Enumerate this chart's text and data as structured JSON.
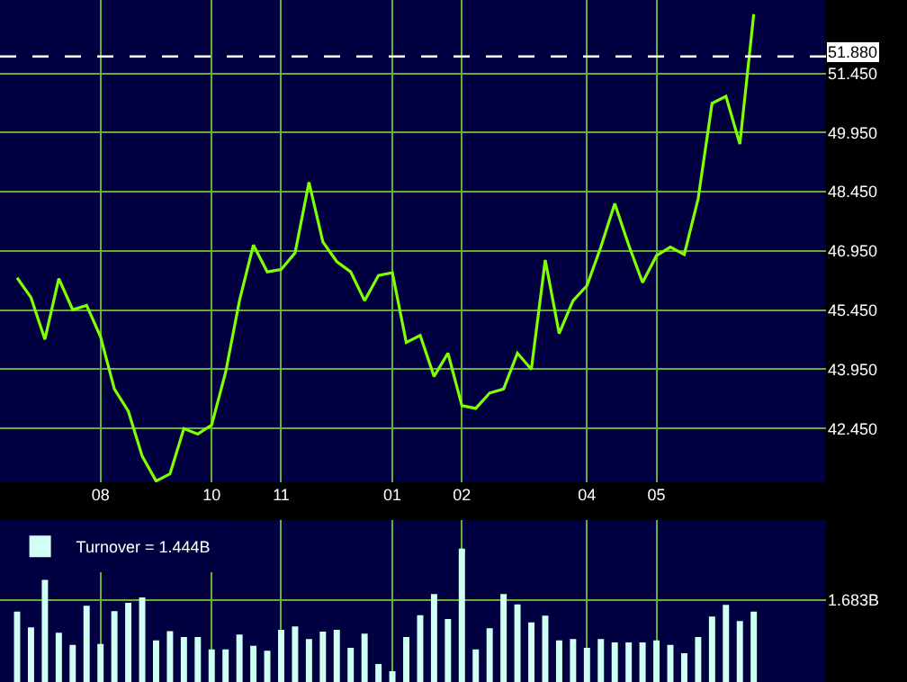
{
  "chart_data": [
    {
      "type": "line",
      "categories": [
        null,
        null,
        null,
        null,
        null,
        null,
        "08",
        null,
        null,
        null,
        null,
        null,
        null,
        null,
        "10",
        null,
        null,
        null,
        null,
        "11",
        null,
        null,
        null,
        null,
        null,
        null,
        null,
        "01",
        null,
        null,
        null,
        null,
        "02",
        null,
        null,
        null,
        null,
        null,
        null,
        null,
        null,
        "04",
        null,
        null,
        null,
        null,
        "05",
        null,
        null,
        null,
        null,
        null,
        null,
        null
      ],
      "series": [
        {
          "color": "#80ff00",
          "values": [
            46.27,
            45.77,
            44.71,
            46.25,
            45.46,
            45.57,
            44.78,
            43.45,
            42.89,
            41.75,
            41.12,
            41.3,
            42.45,
            42.31,
            42.54,
            43.87,
            45.69,
            47.1,
            46.42,
            46.48,
            46.9,
            48.69,
            47.18,
            46.68,
            46.42,
            45.69,
            46.33,
            46.4,
            44.63,
            44.81,
            43.77,
            44.36,
            43.03,
            42.96,
            43.35,
            43.45,
            44.36,
            43.95,
            46.72,
            44.86,
            45.69,
            46.07,
            47.05,
            48.15,
            47.1,
            46.15,
            46.83,
            47.05,
            46.86,
            48.27,
            50.69,
            50.87,
            49.66,
            52.95
          ]
        }
      ],
      "ylim": [
        41.09,
        53.31
      ],
      "yticks": [
        {
          "value": 42.45,
          "label": "42.450"
        },
        {
          "value": 43.95,
          "label": "43.950"
        },
        {
          "value": 45.45,
          "label": "45.450"
        },
        {
          "value": 46.95,
          "label": "46.950"
        },
        {
          "value": 48.45,
          "label": "48.450"
        },
        {
          "value": 49.95,
          "label": "49.950"
        },
        {
          "value": 51.45,
          "label": "51.450"
        }
      ],
      "ref_lines": [
        {
          "axis": "y",
          "value": 51.88,
          "label": "51.880",
          "color": "#ffffff",
          "line_style": "dashed"
        }
      ],
      "grid": true,
      "legend": false,
      "marker": "none"
    },
    {
      "type": "bar",
      "categories": [
        null,
        null,
        null,
        null,
        null,
        null,
        "08",
        null,
        null,
        null,
        null,
        null,
        null,
        null,
        "10",
        null,
        null,
        null,
        null,
        "11",
        null,
        null,
        null,
        null,
        null,
        null,
        null,
        "01",
        null,
        null,
        null,
        null,
        "02",
        null,
        null,
        null,
        null,
        null,
        null,
        null,
        null,
        "04",
        null,
        null,
        null,
        null,
        "05",
        null,
        null,
        null,
        null,
        null,
        null,
        null
      ],
      "series": [
        {
          "name": "Turnover = 1.444B",
          "color": "#d0fff4",
          "values": [
            1.44,
            1.12,
            2.09,
            1.01,
            0.76,
            1.56,
            0.78,
            1.45,
            1.62,
            1.73,
            0.85,
            1.04,
            0.92,
            0.92,
            0.67,
            0.67,
            0.97,
            0.74,
            0.64,
            1.07,
            1.14,
            0.88,
            1.03,
            1.07,
            0.7,
            0.99,
            0.37,
            0.22,
            0.92,
            1.37,
            1.8,
            1.29,
            2.73,
            0.67,
            1.1,
            1.8,
            1.59,
            1.22,
            1.36,
            0.85,
            0.88,
            0.7,
            0.88,
            0.81,
            0.81,
            0.81,
            0.85,
            0.76,
            0.59,
            0.92,
            1.34,
            1.58,
            1.25,
            1.44
          ]
        }
      ],
      "ylim": [
        0,
        3.31
      ],
      "yticks": [
        {
          "value": 1.683,
          "label": "1.683B"
        }
      ],
      "grid": true,
      "legend": "top left",
      "tick_labels": "y"
    }
  ]
}
